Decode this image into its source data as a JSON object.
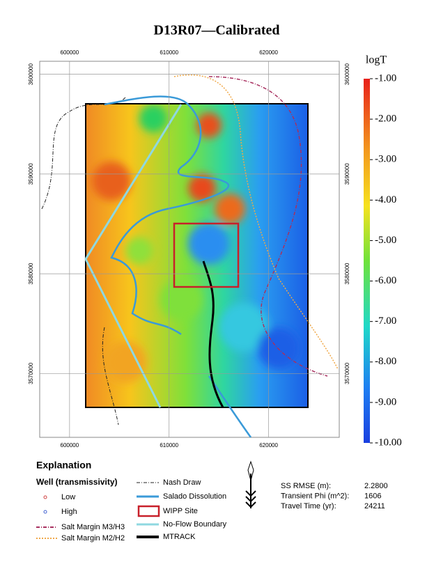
{
  "title": "D13R07—Calibrated",
  "map": {
    "xlim": [
      597000,
      627100
    ],
    "ylim": [
      3563600,
      3601300
    ],
    "xticks": [
      600000,
      610000,
      620000
    ],
    "yticks": [
      3570000,
      3580000,
      3590000,
      3600000
    ],
    "grid": true
  },
  "colorbar": {
    "label": "logT",
    "lim": [
      -10,
      -1
    ],
    "ticks": [
      {
        "value": -1,
        "label": "-1.00"
      },
      {
        "value": -2,
        "label": "-2.00"
      },
      {
        "value": -3,
        "label": "-3.00"
      },
      {
        "value": -4,
        "label": "-4.00"
      },
      {
        "value": -5,
        "label": "-5.00"
      },
      {
        "value": -6,
        "label": "-6.00"
      },
      {
        "value": -7,
        "label": "-7.00"
      },
      {
        "value": -8,
        "label": "-8.00"
      },
      {
        "value": -9,
        "label": "-9.00"
      },
      {
        "value": -10,
        "label": "-10.00"
      }
    ]
  },
  "legend": {
    "title": "Explanation",
    "wells_title": "Well (transmissivity)",
    "items": [
      "Low",
      "High",
      "Salt Margin M3/H3",
      "Salt Margin M2/H2",
      "Nash Draw",
      "Salado Dissolution",
      "WIPP Site",
      "No-Flow Boundary",
      "MTRACK"
    ]
  },
  "stats": [
    {
      "label": "SS RMSE (m):",
      "value": "2.2800"
    },
    {
      "label": "Transient Phi (m^2):",
      "value": "1606"
    },
    {
      "label": "Travel Time (yr):",
      "value": "24211"
    }
  ]
}
